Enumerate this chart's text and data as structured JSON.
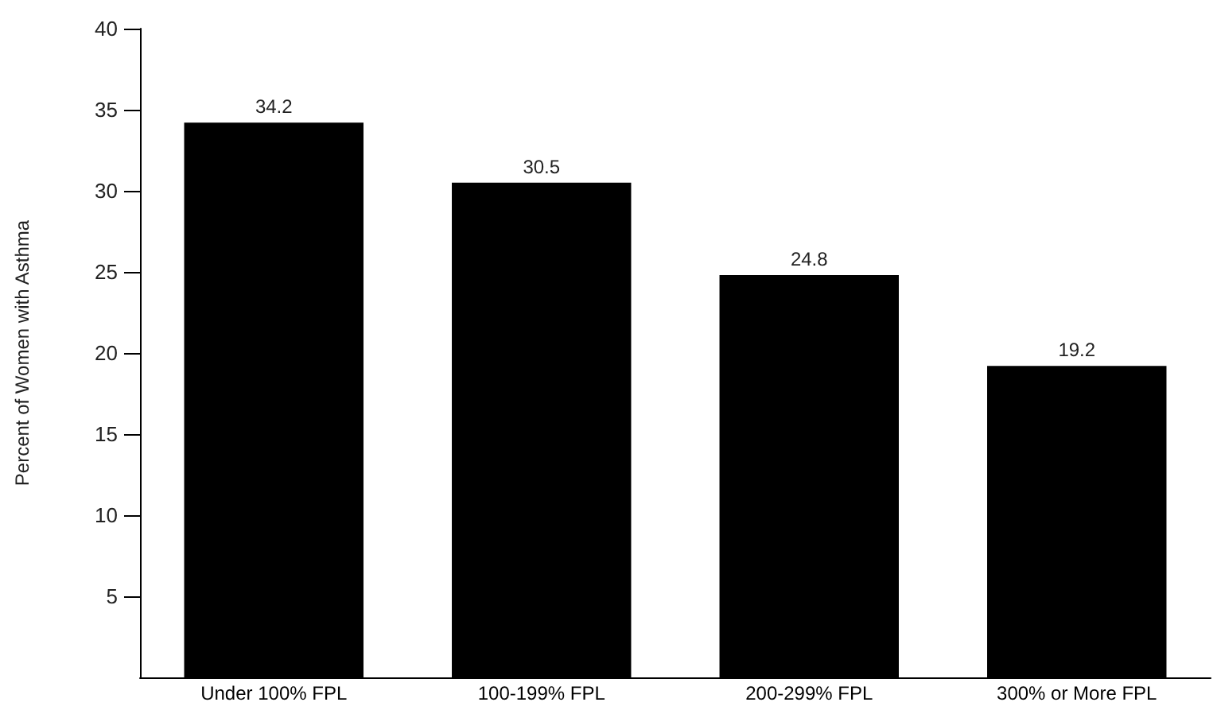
{
  "chart_data": {
    "type": "bar",
    "ylabel": "Percent of Women with Asthma",
    "categories": [
      "Under 100% FPL",
      "100-199% FPL",
      "200-299% FPL",
      "300% or More FPL"
    ],
    "values": [
      34.2,
      30.5,
      24.8,
      19.2
    ],
    "color": "#000000",
    "ylim": [
      0,
      40
    ],
    "yticks": [
      5,
      10,
      15,
      20,
      25,
      30,
      35,
      40
    ],
    "data_labels": true,
    "grid": false
  }
}
